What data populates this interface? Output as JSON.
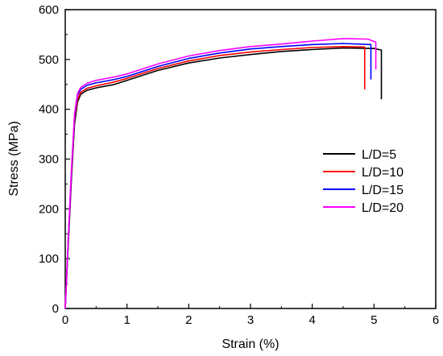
{
  "chart_data": {
    "type": "line",
    "title": "",
    "xlabel": "Strain (%)",
    "ylabel": "Stress (MPa)",
    "xlim": [
      0,
      6
    ],
    "ylim": [
      0,
      600
    ],
    "xticks": [
      "0",
      "1",
      "2",
      "3",
      "4",
      "5",
      "6"
    ],
    "yticks": [
      "0",
      "100",
      "200",
      "300",
      "400",
      "500",
      "600"
    ],
    "grid": false,
    "legend_position": "right",
    "series": [
      {
        "name": "L/D=5",
        "color": "#000000",
        "points": [
          [
            0,
            0
          ],
          [
            0.05,
            130
          ],
          [
            0.1,
            260
          ],
          [
            0.15,
            370
          ],
          [
            0.2,
            415
          ],
          [
            0.25,
            430
          ],
          [
            0.35,
            438
          ],
          [
            0.5,
            443
          ],
          [
            0.8,
            450
          ],
          [
            1.0,
            458
          ],
          [
            1.5,
            478
          ],
          [
            2.0,
            493
          ],
          [
            2.5,
            503
          ],
          [
            3.0,
            510
          ],
          [
            3.5,
            516
          ],
          [
            4.0,
            520
          ],
          [
            4.5,
            523
          ],
          [
            5.0,
            522
          ],
          [
            5.12,
            519
          ],
          [
            5.12,
            420
          ]
        ]
      },
      {
        "name": "L/D=10",
        "color": "#ff0000",
        "points": [
          [
            0,
            0
          ],
          [
            0.05,
            140
          ],
          [
            0.1,
            270
          ],
          [
            0.15,
            380
          ],
          [
            0.2,
            420
          ],
          [
            0.25,
            434
          ],
          [
            0.35,
            442
          ],
          [
            0.5,
            447
          ],
          [
            0.8,
            455
          ],
          [
            1.0,
            462
          ],
          [
            1.5,
            482
          ],
          [
            2.0,
            497
          ],
          [
            2.5,
            508
          ],
          [
            3.0,
            515
          ],
          [
            3.5,
            520
          ],
          [
            4.0,
            524
          ],
          [
            4.5,
            526
          ],
          [
            4.85,
            525
          ],
          [
            4.85,
            440
          ]
        ]
      },
      {
        "name": "L/D=15",
        "color": "#0000ff",
        "points": [
          [
            0,
            0
          ],
          [
            0.05,
            140
          ],
          [
            0.1,
            275
          ],
          [
            0.15,
            385
          ],
          [
            0.2,
            428
          ],
          [
            0.25,
            440
          ],
          [
            0.35,
            448
          ],
          [
            0.5,
            453
          ],
          [
            0.8,
            460
          ],
          [
            1.0,
            466
          ],
          [
            1.5,
            486
          ],
          [
            2.0,
            502
          ],
          [
            2.5,
            513
          ],
          [
            3.0,
            521
          ],
          [
            3.5,
            526
          ],
          [
            4.0,
            530
          ],
          [
            4.5,
            532
          ],
          [
            4.95,
            530
          ],
          [
            4.95,
            460
          ]
        ]
      },
      {
        "name": "L/D=20",
        "color": "#ff00ff",
        "points": [
          [
            0,
            0
          ],
          [
            0.05,
            145
          ],
          [
            0.1,
            280
          ],
          [
            0.15,
            390
          ],
          [
            0.2,
            432
          ],
          [
            0.25,
            444
          ],
          [
            0.35,
            452
          ],
          [
            0.5,
            458
          ],
          [
            0.8,
            465
          ],
          [
            1.0,
            471
          ],
          [
            1.5,
            491
          ],
          [
            2.0,
            507
          ],
          [
            2.5,
            518
          ],
          [
            3.0,
            526
          ],
          [
            3.5,
            531
          ],
          [
            4.0,
            537
          ],
          [
            4.5,
            542
          ],
          [
            4.9,
            541
          ],
          [
            5.03,
            535
          ],
          [
            5.03,
            480
          ]
        ]
      }
    ]
  }
}
